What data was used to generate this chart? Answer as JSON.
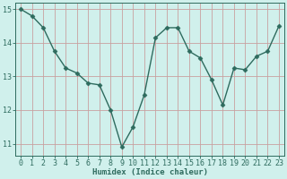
{
  "x": [
    0,
    1,
    2,
    3,
    4,
    5,
    6,
    7,
    8,
    9,
    10,
    11,
    12,
    13,
    14,
    15,
    16,
    17,
    18,
    19,
    20,
    21,
    22,
    23
  ],
  "y": [
    15.0,
    14.8,
    14.45,
    13.75,
    13.25,
    13.1,
    12.8,
    12.75,
    12.0,
    10.9,
    11.5,
    12.45,
    14.15,
    14.45,
    14.45,
    13.75,
    13.55,
    12.9,
    12.15,
    13.25,
    13.2,
    13.6,
    13.75,
    14.5
  ],
  "line_color": "#2e6b5e",
  "marker": "D",
  "markersize": 2.5,
  "linewidth": 1.0,
  "bg_color": "#d0f0ec",
  "grid_color_h": "#c8a0a0",
  "grid_color_v": "#c8a0a0",
  "xlabel": "Humidex (Indice chaleur)",
  "xlim": [
    -0.5,
    23.5
  ],
  "ylim": [
    10.65,
    15.2
  ],
  "yticks": [
    11,
    12,
    13,
    14,
    15
  ],
  "xticks": [
    0,
    1,
    2,
    3,
    4,
    5,
    6,
    7,
    8,
    9,
    10,
    11,
    12,
    13,
    14,
    15,
    16,
    17,
    18,
    19,
    20,
    21,
    22,
    23
  ],
  "xlabel_fontsize": 6.5,
  "tick_fontsize": 6.0,
  "tick_color": "#2e6b5e",
  "label_color": "#2e6b5e",
  "spine_color": "#2e6b5e"
}
